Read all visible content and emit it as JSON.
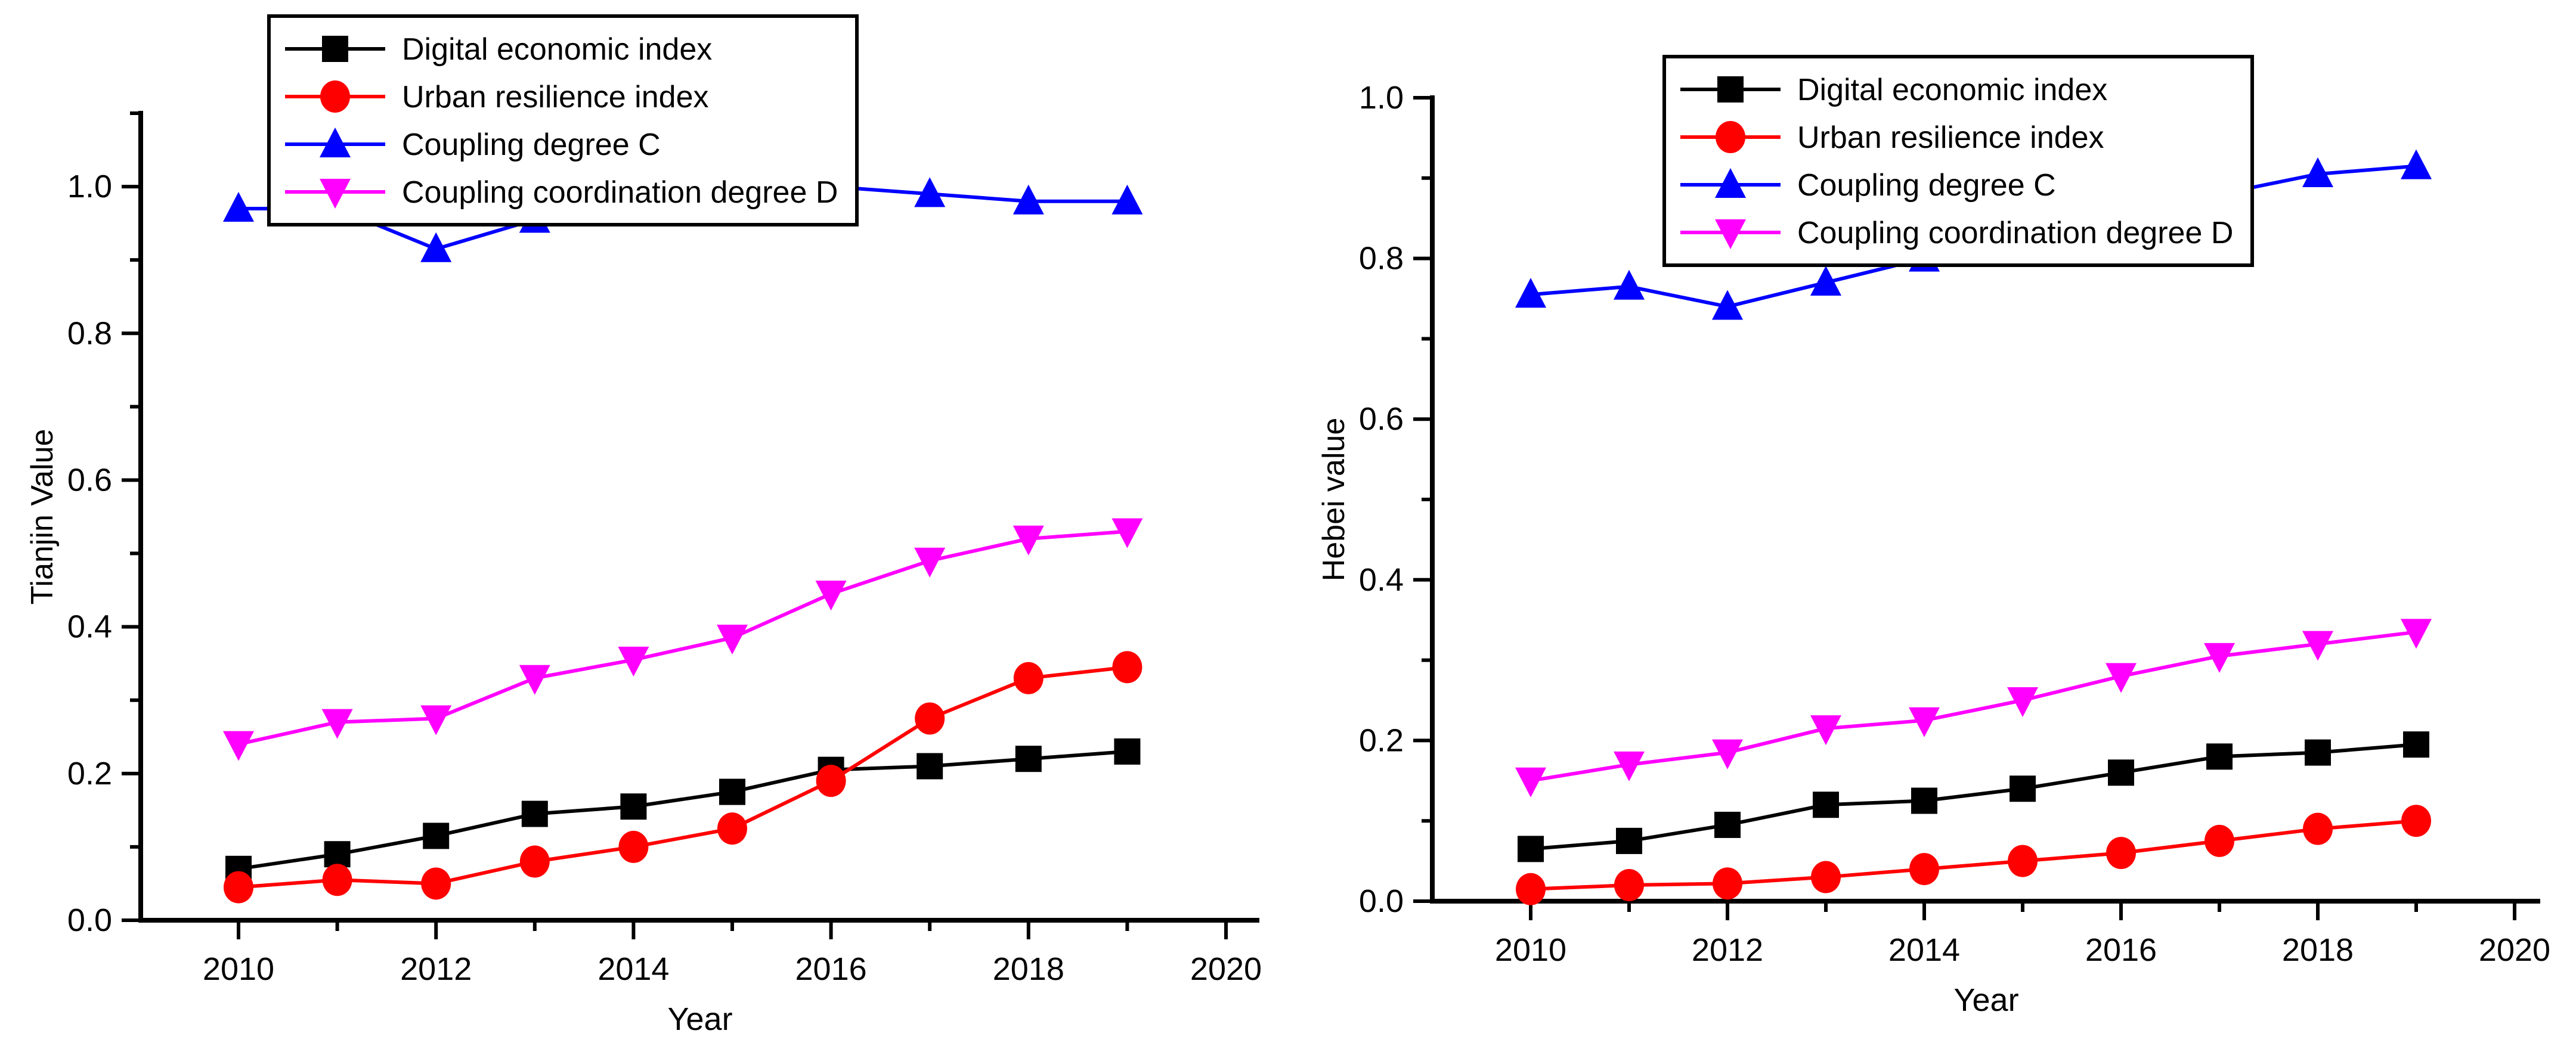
{
  "page": {
    "background": "#ffffff"
  },
  "chart_data": [
    {
      "type": "line",
      "panel": "left",
      "title": "",
      "xlabel": "Year",
      "ylabel": "Tianjin Value",
      "x": [
        2010,
        2011,
        2012,
        2013,
        2014,
        2015,
        2016,
        2017,
        2018,
        2019
      ],
      "xticks_major": [
        2010,
        2012,
        2014,
        2016,
        2018,
        2020
      ],
      "xticks_minor": [
        2011,
        2013,
        2015,
        2017,
        2019
      ],
      "yticks_major": [
        0.0,
        0.2,
        0.4,
        0.6,
        0.8,
        1.0
      ],
      "yticks_minor": [
        0.1,
        0.3,
        0.5,
        0.7,
        0.9,
        1.1
      ],
      "ylim": [
        0.0,
        1.1
      ],
      "xlim": [
        2009,
        2020
      ],
      "grid": false,
      "legend_position": "top-left",
      "series": [
        {
          "name": "Digital economic index",
          "color": "#000000",
          "marker": "square",
          "values": [
            0.07,
            0.09,
            0.115,
            0.145,
            0.155,
            0.175,
            0.205,
            0.21,
            0.22,
            0.23
          ]
        },
        {
          "name": "Urban resilience index",
          "color": "#ff0000",
          "marker": "circle",
          "values": [
            0.045,
            0.055,
            0.05,
            0.08,
            0.1,
            0.125,
            0.19,
            0.275,
            0.33,
            0.345
          ]
        },
        {
          "name": "Coupling degree C",
          "color": "#0000ff",
          "marker": "triangle-up",
          "values": [
            0.97,
            0.97,
            0.915,
            0.955,
            0.98,
            0.99,
            1.0,
            0.99,
            0.98,
            0.98
          ]
        },
        {
          "name": "Coupling coordination degree D",
          "color": "#ff00ff",
          "marker": "triangle-down",
          "values": [
            0.24,
            0.27,
            0.275,
            0.33,
            0.355,
            0.385,
            0.445,
            0.49,
            0.52,
            0.53
          ]
        }
      ]
    },
    {
      "type": "line",
      "panel": "right",
      "title": "",
      "xlabel": "Year",
      "ylabel": "Hebei value",
      "x": [
        2010,
        2011,
        2012,
        2013,
        2014,
        2015,
        2016,
        2017,
        2018,
        2019
      ],
      "xticks_major": [
        2010,
        2012,
        2014,
        2016,
        2018,
        2020
      ],
      "xticks_minor": [
        2011,
        2013,
        2015,
        2017,
        2019
      ],
      "yticks_major": [
        0.0,
        0.2,
        0.4,
        0.6,
        0.8,
        1.0
      ],
      "yticks_minor": [
        0.1,
        0.3,
        0.5,
        0.7,
        0.9
      ],
      "ylim": [
        0.0,
        1.0
      ],
      "xlim": [
        2009,
        2020
      ],
      "grid": false,
      "legend_position": "top-left",
      "series": [
        {
          "name": "Digital economic index",
          "color": "#000000",
          "marker": "square",
          "values": [
            0.065,
            0.075,
            0.095,
            0.12,
            0.125,
            0.14,
            0.16,
            0.18,
            0.185,
            0.195
          ]
        },
        {
          "name": "Urban resilience index",
          "color": "#ff0000",
          "marker": "circle",
          "values": [
            0.015,
            0.02,
            0.022,
            0.03,
            0.04,
            0.05,
            0.06,
            0.075,
            0.09,
            0.1
          ]
        },
        {
          "name": "Coupling degree C",
          "color": "#0000ff",
          "marker": "triangle-up",
          "values": [
            0.755,
            0.765,
            0.74,
            0.77,
            0.8,
            0.83,
            0.86,
            0.88,
            0.905,
            0.915
          ]
        },
        {
          "name": "Coupling coordination degree D",
          "color": "#ff00ff",
          "marker": "triangle-down",
          "values": [
            0.15,
            0.17,
            0.185,
            0.215,
            0.225,
            0.25,
            0.28,
            0.305,
            0.32,
            0.335
          ]
        }
      ]
    }
  ]
}
